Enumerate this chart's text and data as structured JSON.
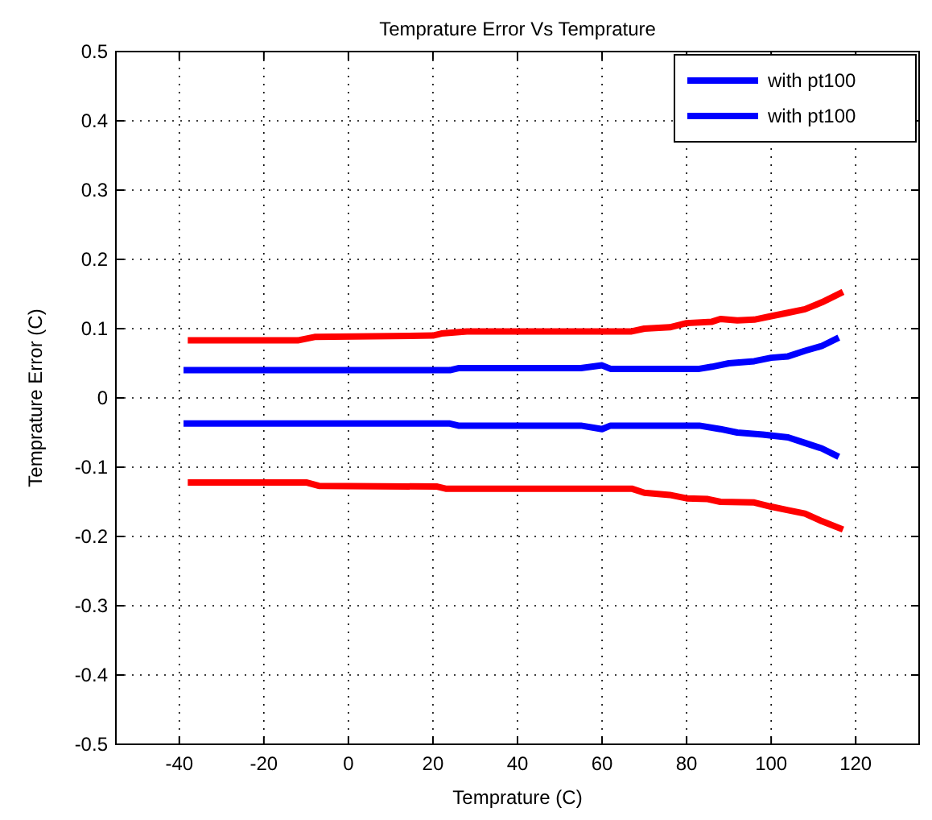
{
  "chart_data": {
    "type": "line",
    "title": "Temprature Error Vs Temprature",
    "xlabel": "Temprature (C)",
    "ylabel": "Temprature Error (C)",
    "xlim": [
      -55,
      135
    ],
    "xticks": [
      -40,
      -20,
      0,
      20,
      40,
      60,
      80,
      100,
      120
    ],
    "ylim": [
      -0.5,
      0.5
    ],
    "yticks": [
      -0.5,
      -0.4,
      -0.3,
      -0.2,
      -0.1,
      0,
      0.1,
      0.2,
      0.3,
      0.4,
      0.5
    ],
    "grid": true,
    "legend": "top right",
    "marker": "none",
    "line_style": "solid",
    "series": [
      {
        "color": "#ff0000",
        "x": [
          -38,
          -12,
          -8,
          20,
          22,
          28,
          67,
          70,
          76,
          80,
          86,
          88,
          92,
          96,
          100,
          104,
          108,
          112,
          117
        ],
        "values": [
          0.083,
          0.083,
          0.088,
          0.09,
          0.093,
          0.096,
          0.096,
          0.1,
          0.102,
          0.108,
          0.11,
          0.114,
          0.112,
          0.113,
          0.118,
          0.123,
          0.128,
          0.138,
          0.153
        ]
      },
      {
        "color": "#ff0000",
        "x": [
          -38,
          -10,
          -7,
          21,
          23,
          67,
          70,
          76,
          80,
          85,
          88,
          96,
          100,
          104,
          108,
          112,
          117
        ],
        "values": [
          -0.122,
          -0.122,
          -0.127,
          -0.128,
          -0.131,
          -0.131,
          -0.137,
          -0.14,
          -0.145,
          -0.146,
          -0.15,
          -0.151,
          -0.157,
          -0.162,
          -0.167,
          -0.178,
          -0.19
        ]
      },
      {
        "name": "with pt100",
        "color": "#0000ff",
        "x": [
          -39,
          24,
          26,
          55,
          60,
          62,
          83,
          86,
          90,
          96,
          100,
          104,
          108,
          112,
          116
        ],
        "values": [
          0.04,
          0.04,
          0.043,
          0.043,
          0.047,
          0.042,
          0.042,
          0.045,
          0.05,
          0.053,
          0.058,
          0.06,
          0.068,
          0.075,
          0.087
        ]
      },
      {
        "name": "with pt100",
        "color": "#0000ff",
        "x": [
          -39,
          24,
          26,
          55,
          60,
          62,
          83,
          88,
          92,
          98,
          104,
          108,
          112,
          116
        ],
        "values": [
          -0.037,
          -0.037,
          -0.04,
          -0.04,
          -0.045,
          -0.04,
          -0.04,
          -0.045,
          -0.05,
          -0.053,
          -0.057,
          -0.065,
          -0.073,
          -0.085
        ]
      }
    ]
  }
}
